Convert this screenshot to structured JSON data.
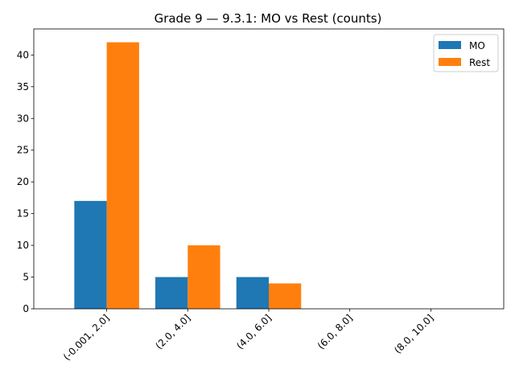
{
  "chart_data": {
    "type": "bar",
    "title": "Grade 9 — 9.3.1: MO vs Rest (counts)",
    "xlabel": "",
    "ylabel": "",
    "categories": [
      "(-0.001, 2.0]",
      "(2.0, 4.0]",
      "(4.0, 6.0]",
      "(6.0, 8.0]",
      "(8.0, 10.0]"
    ],
    "series": [
      {
        "name": "MO",
        "values": [
          17,
          5,
          5,
          0,
          0
        ],
        "color": "#1f77b4"
      },
      {
        "name": "Rest",
        "values": [
          42,
          10,
          4,
          0,
          0
        ],
        "color": "#ff7f0e"
      }
    ],
    "ylim": [
      0,
      44.1
    ],
    "yticks": [
      0,
      5,
      10,
      15,
      20,
      25,
      30,
      35,
      40
    ],
    "grid": false,
    "legend": "top-right"
  }
}
